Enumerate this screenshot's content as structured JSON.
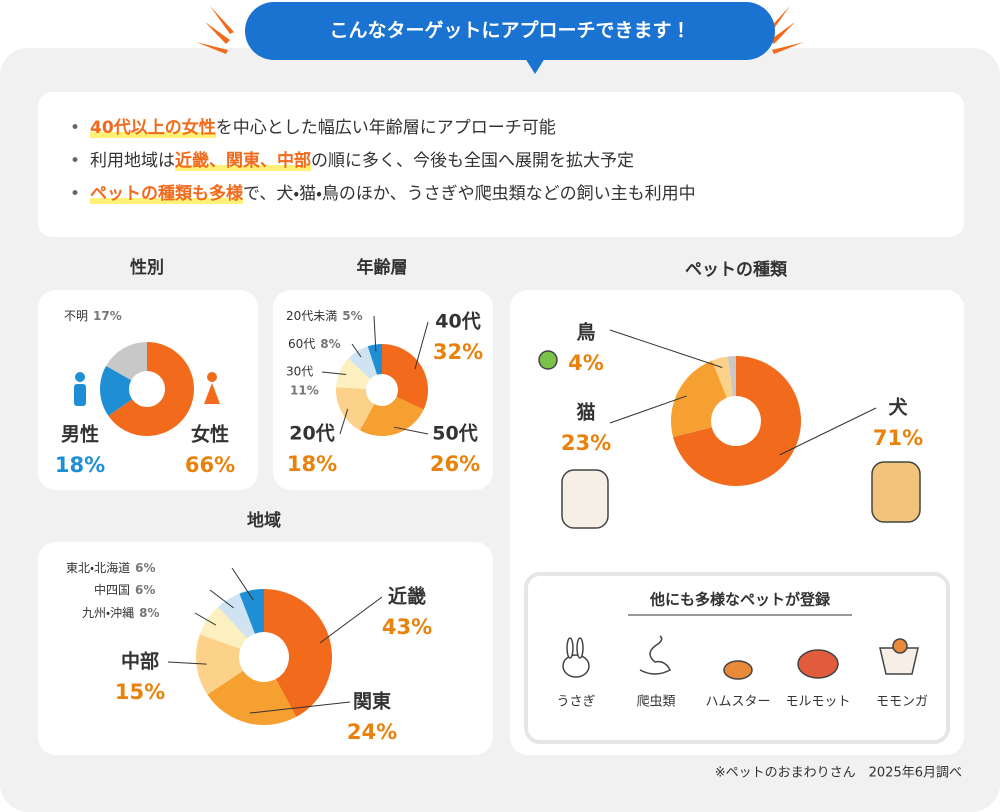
{
  "header": {
    "title": "こんなターゲットにアプローチできます！"
  },
  "bullets": [
    [
      {
        "text": "40代以上の女性",
        "emphasis": true
      },
      {
        "text": "を中心とした幅広い年齢層にアプローチ可能",
        "emphasis": false
      }
    ],
    [
      {
        "text": "利用地域は",
        "emphasis": false
      },
      {
        "text": "近畿、関東、中部",
        "emphasis": true
      },
      {
        "text": "の順に多く、今後も全国へ展開を拡大予定",
        "emphasis": false
      }
    ],
    [
      {
        "text": "ペットの種類も多様",
        "emphasis": true
      },
      {
        "text": "で、犬・猫・鳥のほか、うさぎや爬虫類などの飼い主も利用中",
        "emphasis": false
      }
    ]
  ],
  "chart_data": [
    {
      "type": "pie",
      "donut": true,
      "title": "性別",
      "categories": [
        "女性",
        "男性",
        "不明"
      ],
      "values": [
        66,
        18,
        17
      ],
      "value_labels": [
        "66%",
        "18%",
        "17%"
      ],
      "colors": [
        "#f26a1b",
        "#1e8fd5",
        "#c8c8c8"
      ]
    },
    {
      "type": "pie",
      "donut": true,
      "title": "年齢層",
      "categories": [
        "40代",
        "50代",
        "20代",
        "30代",
        "60代",
        "20代未満"
      ],
      "values": [
        32,
        26,
        18,
        11,
        8,
        5
      ],
      "value_labels": [
        "32%",
        "26%",
        "18%",
        "11%",
        "8%",
        "5%"
      ],
      "colors": [
        "#f26a1b",
        "#f5a030",
        "#fcd28a",
        "#fdf0c0",
        "#cfe3f2",
        "#1e8fd5"
      ]
    },
    {
      "type": "pie",
      "donut": true,
      "title": "ペットの種類",
      "categories": [
        "犬",
        "猫",
        "鳥",
        null
      ],
      "values": [
        71,
        23,
        4,
        2
      ],
      "value_labels": [
        "71%",
        "23%",
        "4%",
        null
      ],
      "colors": [
        "#f26a1b",
        "#f5a030",
        "#fcd28a",
        "#c8c8c8"
      ]
    },
    {
      "type": "pie",
      "donut": true,
      "title": "地域",
      "categories": [
        "近畿",
        "関東",
        "中部",
        "九州・沖縄",
        "中四国",
        "東北・北海道"
      ],
      "values": [
        43,
        24,
        15,
        8,
        6,
        6
      ],
      "value_labels": [
        "43%",
        "24%",
        "15%",
        "8%",
        "6%",
        "6%"
      ],
      "colors": [
        "#f26a1b",
        "#f5a030",
        "#fcd28a",
        "#fdf0c0",
        "#cfe3f2",
        "#1e8fd5"
      ]
    }
  ],
  "other_pets": {
    "title": "他にも多様なペットが登録",
    "items": [
      "うさぎ",
      "爬虫類",
      "ハムスター",
      "モルモット",
      "モモンガ"
    ]
  },
  "footnote": "※ペットのおまわりさん　2025年6月調べ"
}
